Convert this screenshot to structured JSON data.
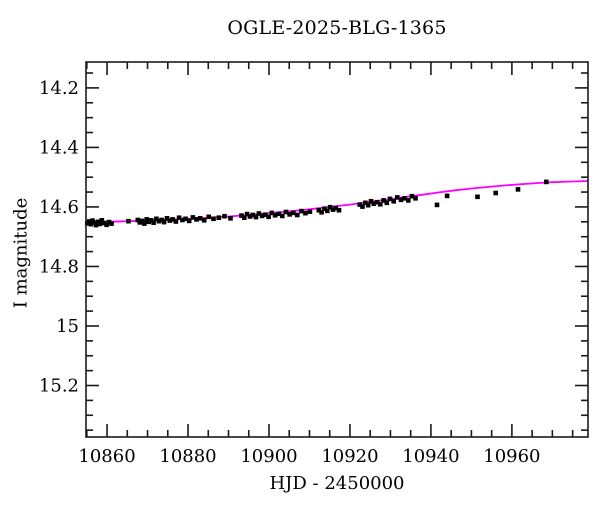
{
  "chart_data": {
    "type": "scatter",
    "title": "OGLE-2025-BLG-1365",
    "xlabel": "HJD - 2450000",
    "ylabel": "I magnitude",
    "x_range": [
      10854.8,
      10978.8
    ],
    "y_range_top_to_bottom": [
      14.113,
      15.373
    ],
    "y_axis_inverted": true,
    "grid": false,
    "legend": null,
    "marker": "filled-square",
    "marker_size_px": 4.6,
    "x_major_ticks": [
      {
        "value": 10860,
        "label": "10860"
      },
      {
        "value": 10880,
        "label": "10880"
      },
      {
        "value": 10900,
        "label": "10900"
      },
      {
        "value": 10920,
        "label": "10920"
      },
      {
        "value": 10940,
        "label": "10940"
      },
      {
        "value": 10960,
        "label": "10960"
      }
    ],
    "x_minor_tick_step": 5,
    "y_major_ticks": [
      {
        "value": 14.2,
        "label": "14.2"
      },
      {
        "value": 14.4,
        "label": "14.4"
      },
      {
        "value": 14.6,
        "label": "14.6"
      },
      {
        "value": 14.8,
        "label": "14.8"
      },
      {
        "value": 15.0,
        "label": "15"
      },
      {
        "value": 15.2,
        "label": "15.2"
      }
    ],
    "y_minor_tick_step": 0.05,
    "colors": {
      "points": "#000000",
      "model_curve": "#ff00ff",
      "axes": "#1a1a1a",
      "text": "#000000",
      "background": "#ffffff"
    },
    "points": [
      [
        10855.1,
        14.655
      ],
      [
        10855.6,
        14.649
      ],
      [
        10856.0,
        14.658
      ],
      [
        10856.4,
        14.646
      ],
      [
        10856.9,
        14.653
      ],
      [
        10857.3,
        14.661
      ],
      [
        10857.8,
        14.65
      ],
      [
        10858.2,
        14.657
      ],
      [
        10858.7,
        14.645
      ],
      [
        10859.3,
        14.654
      ],
      [
        10859.9,
        14.66
      ],
      [
        10860.5,
        14.651
      ],
      [
        10861.1,
        14.656
      ],
      [
        10865.3,
        14.648
      ],
      [
        10867.6,
        14.644
      ],
      [
        10868.1,
        14.652
      ],
      [
        10868.6,
        14.647
      ],
      [
        10869.2,
        14.656
      ],
      [
        10869.8,
        14.642
      ],
      [
        10870.3,
        14.65
      ],
      [
        10870.9,
        14.645
      ],
      [
        10871.5,
        14.653
      ],
      [
        10872.2,
        14.64
      ],
      [
        10872.8,
        14.648
      ],
      [
        10873.5,
        14.644
      ],
      [
        10874.1,
        14.651
      ],
      [
        10874.8,
        14.638
      ],
      [
        10875.5,
        14.646
      ],
      [
        10876.2,
        14.642
      ],
      [
        10877.0,
        14.649
      ],
      [
        10877.8,
        14.636
      ],
      [
        10878.6,
        14.644
      ],
      [
        10879.4,
        14.64
      ],
      [
        10880.3,
        14.647
      ],
      [
        10881.2,
        14.635
      ],
      [
        10882.1,
        14.642
      ],
      [
        10883.0,
        14.638
      ],
      [
        10884.0,
        14.645
      ],
      [
        10885.1,
        14.633
      ],
      [
        10886.3,
        14.64
      ],
      [
        10887.6,
        14.636
      ],
      [
        10889.0,
        14.631
      ],
      [
        10890.5,
        14.638
      ],
      [
        10893.2,
        14.629
      ],
      [
        10893.9,
        14.636
      ],
      [
        10894.6,
        14.624
      ],
      [
        10895.3,
        14.632
      ],
      [
        10896.0,
        14.627
      ],
      [
        10896.8,
        14.634
      ],
      [
        10897.5,
        14.622
      ],
      [
        10898.3,
        14.63
      ],
      [
        10899.1,
        14.626
      ],
      [
        10899.9,
        14.633
      ],
      [
        10900.7,
        14.62
      ],
      [
        10901.5,
        14.628
      ],
      [
        10902.4,
        14.623
      ],
      [
        10903.3,
        14.63
      ],
      [
        10904.2,
        14.617
      ],
      [
        10905.1,
        14.625
      ],
      [
        10906.0,
        14.62
      ],
      [
        10907.0,
        14.627
      ],
      [
        10908.0,
        14.614
      ],
      [
        10909.0,
        14.621
      ],
      [
        10910.1,
        14.616
      ],
      [
        10912.3,
        14.611
      ],
      [
        10913.0,
        14.618
      ],
      [
        10913.7,
        14.606
      ],
      [
        10914.4,
        14.613
      ],
      [
        10915.1,
        14.601
      ],
      [
        10915.8,
        14.609
      ],
      [
        10916.5,
        14.604
      ],
      [
        10917.3,
        14.611
      ],
      [
        10922.4,
        14.592
      ],
      [
        10923.1,
        14.599
      ],
      [
        10923.8,
        14.586
      ],
      [
        10924.5,
        14.594
      ],
      [
        10925.2,
        14.581
      ],
      [
        10925.9,
        14.589
      ],
      [
        10926.7,
        14.584
      ],
      [
        10927.5,
        14.591
      ],
      [
        10928.3,
        14.578
      ],
      [
        10929.1,
        14.586
      ],
      [
        10929.9,
        14.573
      ],
      [
        10930.8,
        14.581
      ],
      [
        10931.7,
        14.568
      ],
      [
        10932.6,
        14.576
      ],
      [
        10933.5,
        14.571
      ],
      [
        10934.4,
        14.578
      ],
      [
        10935.3,
        14.564
      ],
      [
        10936.2,
        14.571
      ],
      [
        10941.5,
        14.593
      ],
      [
        10944.0,
        14.563
      ],
      [
        10951.5,
        14.566
      ],
      [
        10956.0,
        14.553
      ],
      [
        10961.5,
        14.541
      ],
      [
        10968.5,
        14.516
      ]
    ],
    "model_curve": [
      [
        10854.8,
        14.652
      ],
      [
        10860,
        14.65
      ],
      [
        10865,
        14.648
      ],
      [
        10870,
        14.646
      ],
      [
        10875,
        14.643
      ],
      [
        10880,
        14.64
      ],
      [
        10885,
        14.636
      ],
      [
        10890,
        14.632
      ],
      [
        10895,
        14.627
      ],
      [
        10900,
        14.621
      ],
      [
        10905,
        14.615
      ],
      [
        10910,
        14.608
      ],
      [
        10915,
        14.6
      ],
      [
        10920,
        14.592
      ],
      [
        10925,
        14.583
      ],
      [
        10930,
        14.574
      ],
      [
        10934,
        14.566
      ],
      [
        10938,
        14.559
      ],
      [
        10942,
        14.551
      ],
      [
        10946,
        14.544
      ],
      [
        10950,
        14.538
      ],
      [
        10954,
        14.533
      ],
      [
        10958,
        14.528
      ],
      [
        10962,
        14.524
      ],
      [
        10966,
        14.52
      ],
      [
        10970,
        14.517
      ],
      [
        10974,
        14.515
      ],
      [
        10978.8,
        14.513
      ]
    ]
  }
}
